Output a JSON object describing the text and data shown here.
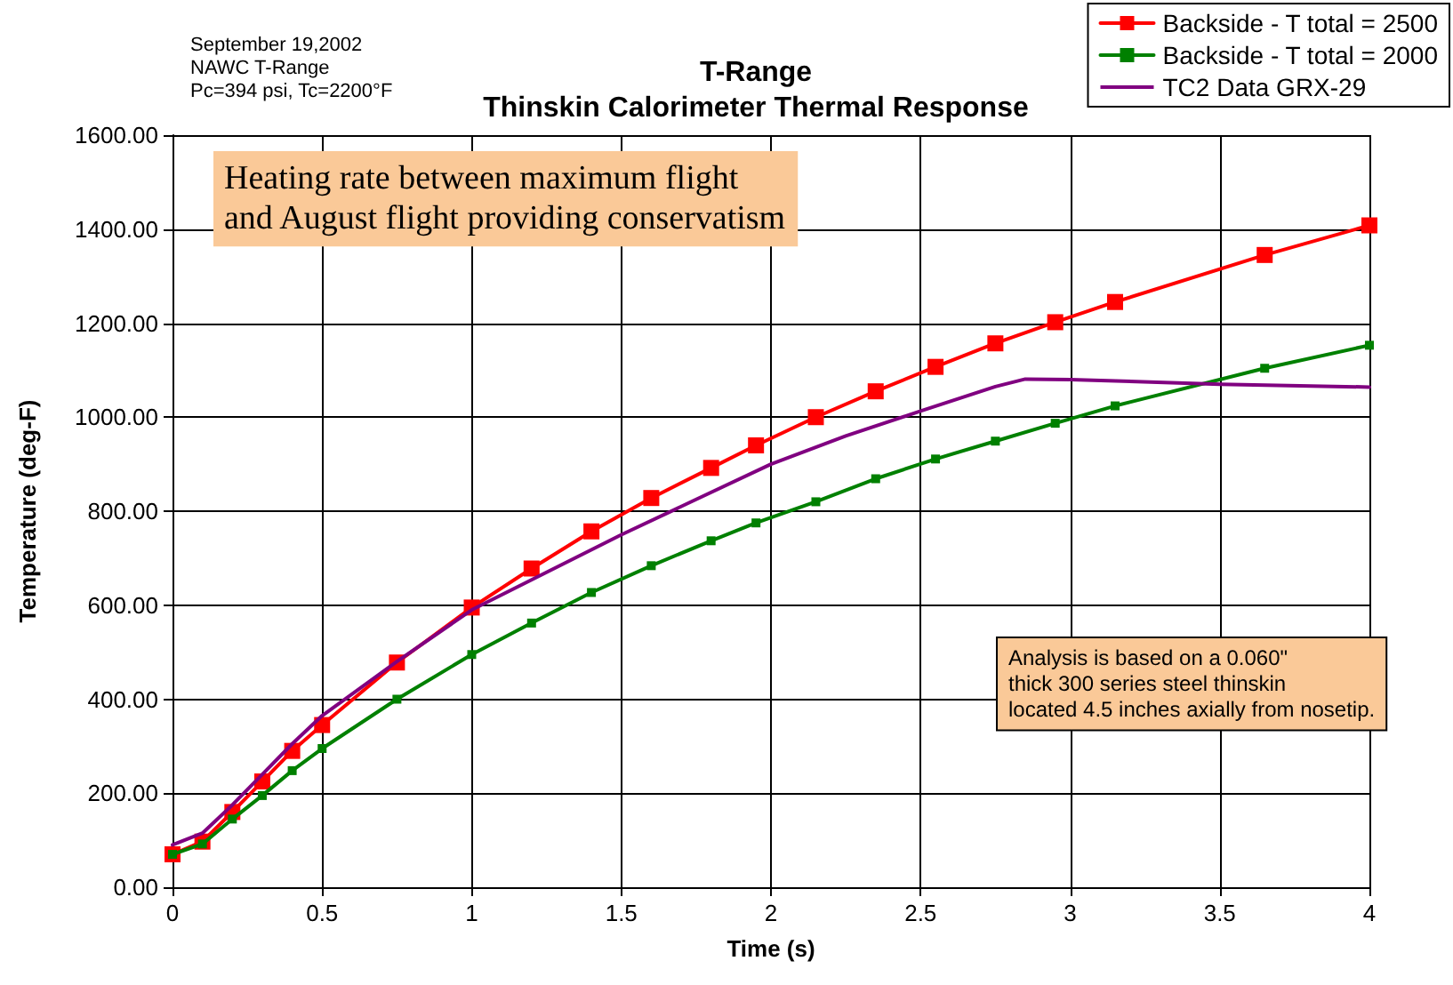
{
  "chart_data": {
    "type": "line",
    "title": "T-Range\nThinskin Calorimeter Thermal Response",
    "subtitle": "September 19,2002\nNAWC T-Range\nPc=394 psi, Tc=2200°F",
    "xlabel": "Time (s)",
    "ylabel": "Temperature (deg-F)",
    "annotations": [
      "Heating rate between maximum flight\nand August flight providing conservatism",
      "Analysis is based on a 0.060\"\nthick 300 series steel thinskin\nlocated 4.5 inches axially from nosetip."
    ],
    "xlim": [
      0,
      4
    ],
    "xticks": [
      0,
      0.5,
      1,
      1.5,
      2,
      2.5,
      3,
      3.5,
      4
    ],
    "ylim": [
      0,
      1600
    ],
    "yticks": [
      {
        "value": 0,
        "label": "0.00"
      },
      {
        "value": 200,
        "label": "200.00"
      },
      {
        "value": 400,
        "label": "400.00"
      },
      {
        "value": 600,
        "label": "600.00"
      },
      {
        "value": 800,
        "label": "800.00"
      },
      {
        "value": 1000,
        "label": "1000.00"
      },
      {
        "value": 1200,
        "label": "1200.00"
      },
      {
        "value": 1400,
        "label": "1400.00"
      },
      {
        "value": 1600,
        "label": "1600.00"
      }
    ],
    "grid": true,
    "legend": "top right",
    "series": [
      {
        "name": "Backside - T total = 2500",
        "color": "#ff0000",
        "marker": "square",
        "x": [
          0,
          0.1,
          0.2,
          0.3,
          0.4,
          0.5,
          0.75,
          1,
          1.2,
          1.4,
          1.6,
          1.8,
          1.95,
          2.15,
          2.35,
          2.55,
          2.75,
          2.95,
          3.15,
          3.65,
          4
        ],
        "values": [
          70,
          97,
          160,
          225,
          290,
          345,
          478,
          595,
          678,
          757,
          828,
          892,
          940,
          1000,
          1055,
          1107,
          1157,
          1202,
          1245,
          1345,
          1408
        ]
      },
      {
        "name": "Backside - T total = 2000",
        "color": "#008000",
        "marker": "square",
        "x": [
          0,
          0.1,
          0.2,
          0.3,
          0.4,
          0.5,
          0.75,
          1,
          1.2,
          1.4,
          1.6,
          1.8,
          1.95,
          2.15,
          2.35,
          2.55,
          2.75,
          2.95,
          3.15,
          3.65,
          4
        ],
        "values": [
          70,
          92,
          145,
          195,
          248,
          295,
          400,
          495,
          562,
          627,
          684,
          737,
          775,
          820,
          869,
          911,
          949,
          987,
          1024,
          1104,
          1153
        ]
      },
      {
        "name": "TC2 Data GRX-29",
        "color": "#800080",
        "marker": "none",
        "x": [
          0,
          0.1,
          0.2,
          0.3,
          0.4,
          0.5,
          0.75,
          1,
          1.25,
          1.5,
          1.75,
          2,
          2.25,
          2.5,
          2.75,
          2.85,
          3,
          3.5,
          4
        ],
        "values": [
          90,
          115,
          175,
          240,
          305,
          365,
          480,
          590,
          670,
          750,
          825,
          900,
          960,
          1013,
          1065,
          1081,
          1080,
          1070,
          1064
        ]
      }
    ]
  }
}
